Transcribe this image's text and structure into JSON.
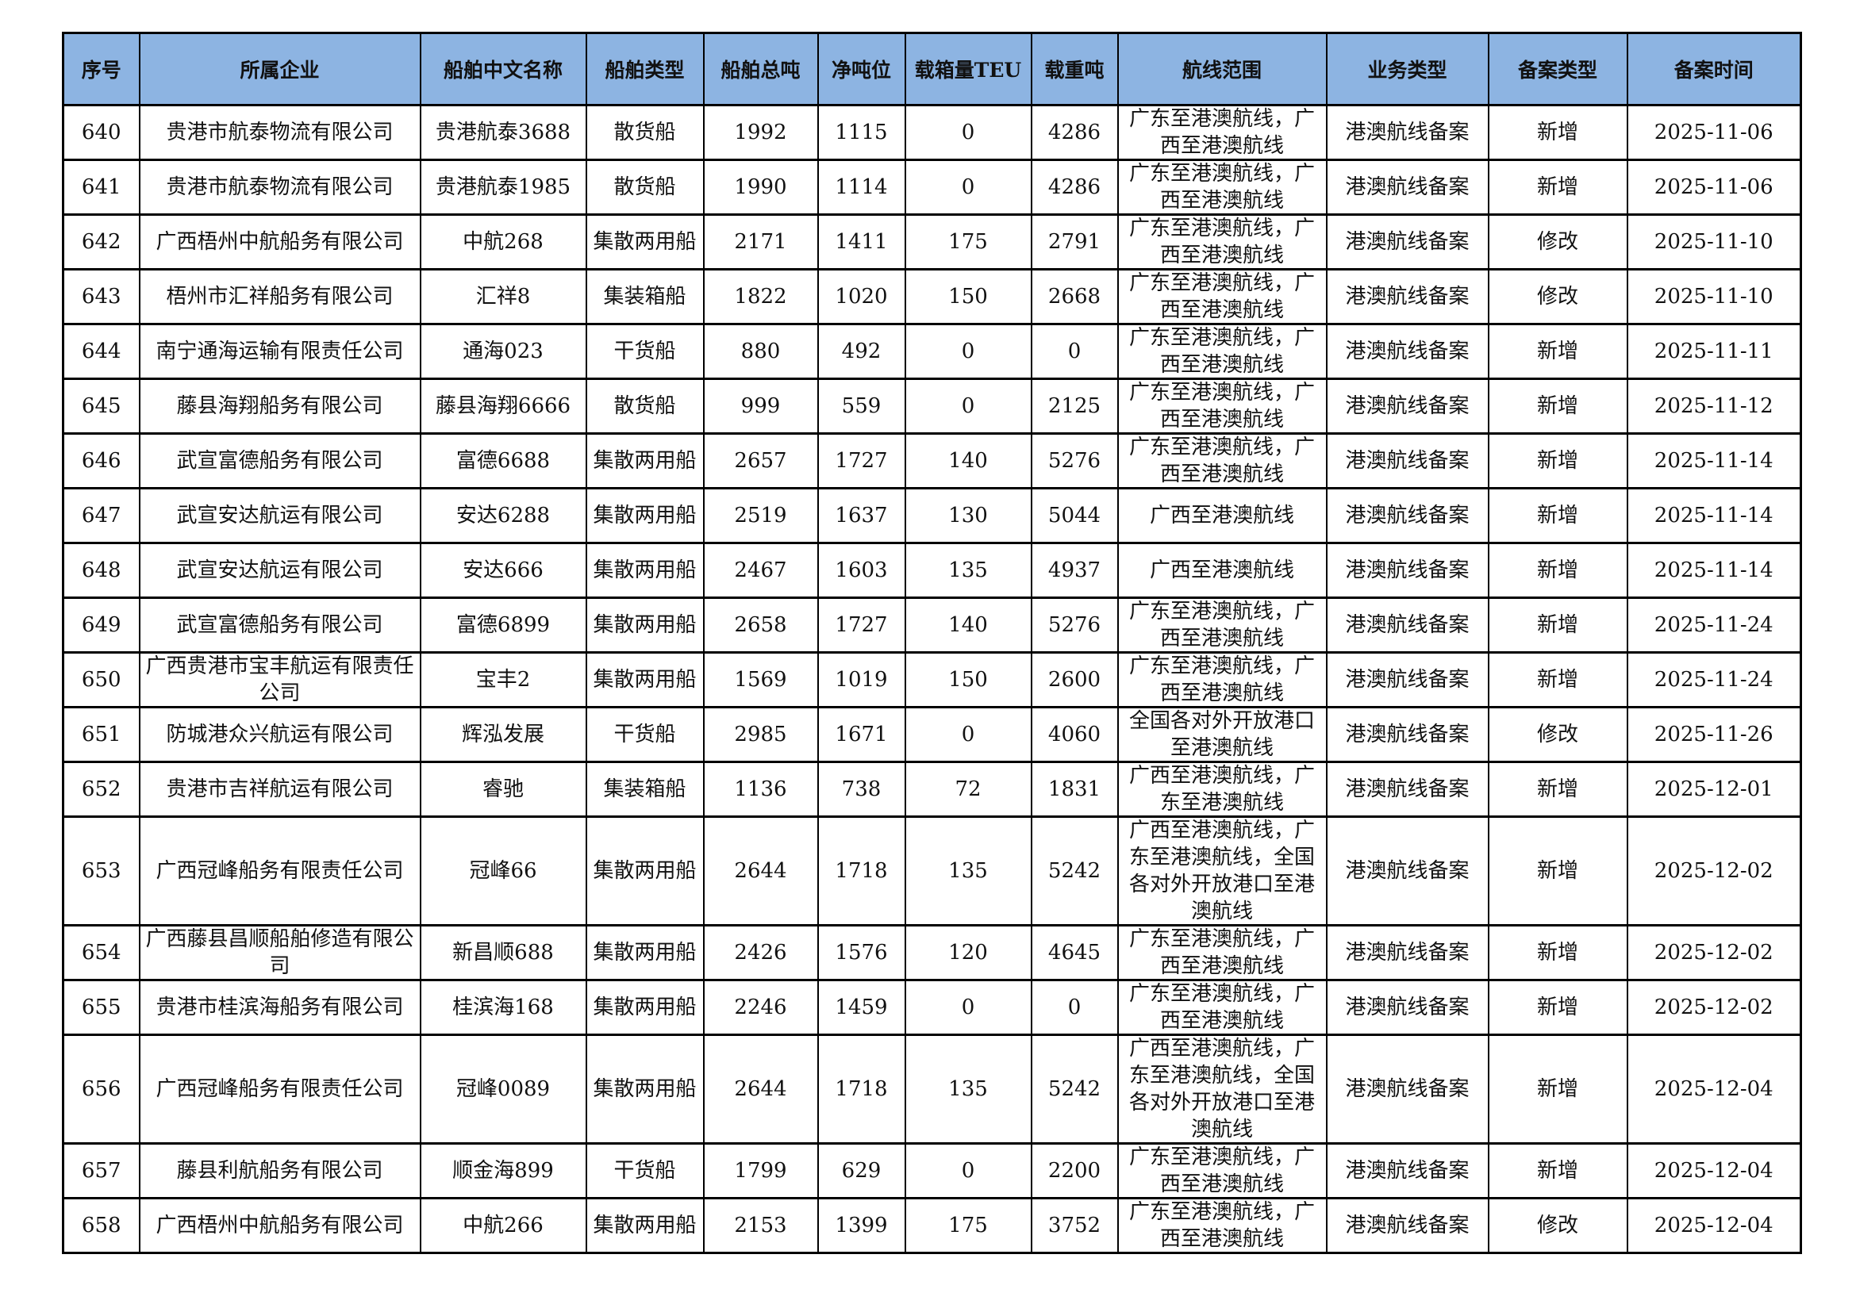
{
  "headers": [
    "序号",
    "所属企业",
    "船舶中文名称",
    "船舶类型",
    "船舶总吨",
    "净吨位",
    "载箱量TEU",
    "载重吨",
    "航线范围",
    "业务类型",
    "备案类型",
    "备案时间"
  ],
  "header_bg": "#8db4e2",
  "rows": [
    [
      "640",
      "贵港市航泰物流有限公司",
      "贵港航泰3688",
      "散货船",
      "1992",
      "1115",
      "0",
      "4286",
      "广东至港澳航线，广西至港澳航线",
      "港澳航线备案",
      "新增",
      "2025-11-06"
    ],
    [
      "641",
      "贵港市航泰物流有限公司",
      "贵港航泰1985",
      "散货船",
      "1990",
      "1114",
      "0",
      "4286",
      "广东至港澳航线，广西至港澳航线",
      "港澳航线备案",
      "新增",
      "2025-11-06"
    ],
    [
      "642",
      "广西梧州中航船务有限公司",
      "中航268",
      "集散两用船",
      "2171",
      "1411",
      "175",
      "2791",
      "广东至港澳航线，广西至港澳航线",
      "港澳航线备案",
      "修改",
      "2025-11-10"
    ],
    [
      "643",
      "梧州市汇祥船务有限公司",
      "汇祥8",
      "集装箱船",
      "1822",
      "1020",
      "150",
      "2668",
      "广东至港澳航线，广西至港澳航线",
      "港澳航线备案",
      "修改",
      "2025-11-10"
    ],
    [
      "644",
      "南宁通海运输有限责任公司",
      "通海023",
      "干货船",
      "880",
      "492",
      "0",
      "0",
      "广东至港澳航线，广西至港澳航线",
      "港澳航线备案",
      "新增",
      "2025-11-11"
    ],
    [
      "645",
      "藤县海翔船务有限公司",
      "藤县海翔6666",
      "散货船",
      "999",
      "559",
      "0",
      "2125",
      "广东至港澳航线，广西至港澳航线",
      "港澳航线备案",
      "新增",
      "2025-11-12"
    ],
    [
      "646",
      "武宣富德船务有限公司",
      "富德6688",
      "集散两用船",
      "2657",
      "1727",
      "140",
      "5276",
      "广东至港澳航线，广西至港澳航线",
      "港澳航线备案",
      "新增",
      "2025-11-14"
    ],
    [
      "647",
      "武宣安达航运有限公司",
      "安达6288",
      "集散两用船",
      "2519",
      "1637",
      "130",
      "5044",
      "广西至港澳航线",
      "港澳航线备案",
      "新增",
      "2025-11-14"
    ],
    [
      "648",
      "武宣安达航运有限公司",
      "安达666",
      "集散两用船",
      "2467",
      "1603",
      "135",
      "4937",
      "广西至港澳航线",
      "港澳航线备案",
      "新增",
      "2025-11-14"
    ],
    [
      "649",
      "武宣富德船务有限公司",
      "富德6899",
      "集散两用船",
      "2658",
      "1727",
      "140",
      "5276",
      "广东至港澳航线，广西至港澳航线",
      "港澳航线备案",
      "新增",
      "2025-11-24"
    ],
    [
      "650",
      "广西贵港市宝丰航运有限责任公司",
      "宝丰2",
      "集散两用船",
      "1569",
      "1019",
      "150",
      "2600",
      "广东至港澳航线，广西至港澳航线",
      "港澳航线备案",
      "新增",
      "2025-11-24"
    ],
    [
      "651",
      "防城港众兴航运有限公司",
      "辉泓发展",
      "干货船",
      "2985",
      "1671",
      "0",
      "4060",
      "全国各对外开放港口至港澳航线",
      "港澳航线备案",
      "修改",
      "2025-11-26"
    ],
    [
      "652",
      "贵港市吉祥航运有限公司",
      "睿驰",
      "集装箱船",
      "1136",
      "738",
      "72",
      "1831",
      "广西至港澳航线，广东至港澳航线",
      "港澳航线备案",
      "新增",
      "2025-12-01"
    ],
    [
      "653",
      "广西冠峰船务有限责任公司",
      "冠峰66",
      "集散两用船",
      "2644",
      "1718",
      "135",
      "5242",
      "广西至港澳航线，广东至港澳航线，全国各对外开放港口至港澳航线",
      "港澳航线备案",
      "新增",
      "2025-12-02"
    ],
    [
      "654",
      "广西藤县昌顺船舶修造有限公司",
      "新昌顺688",
      "集散两用船",
      "2426",
      "1576",
      "120",
      "4645",
      "广东至港澳航线，广西至港澳航线",
      "港澳航线备案",
      "新增",
      "2025-12-02"
    ],
    [
      "655",
      "贵港市桂滨海船务有限公司",
      "桂滨海168",
      "集散两用船",
      "2246",
      "1459",
      "0",
      "0",
      "广东至港澳航线，广西至港澳航线",
      "港澳航线备案",
      "新增",
      "2025-12-02"
    ],
    [
      "656",
      "广西冠峰船务有限责任公司",
      "冠峰0089",
      "集散两用船",
      "2644",
      "1718",
      "135",
      "5242",
      "广西至港澳航线，广东至港澳航线，全国各对外开放港口至港澳航线",
      "港澳航线备案",
      "新增",
      "2025-12-04"
    ],
    [
      "657",
      "藤县利航船务有限公司",
      "顺金海899",
      "干货船",
      "1799",
      "629",
      "0",
      "2200",
      "广东至港澳航线，广西至港澳航线",
      "港澳航线备案",
      "新增",
      "2025-12-04"
    ],
    [
      "658",
      "广西梧州中航船务有限公司",
      "中航266",
      "集散两用船",
      "2153",
      "1399",
      "175",
      "3752",
      "广东至港澳航线，广西至港澳航线",
      "港澳航线备案",
      "修改",
      "2025-12-04"
    ]
  ]
}
